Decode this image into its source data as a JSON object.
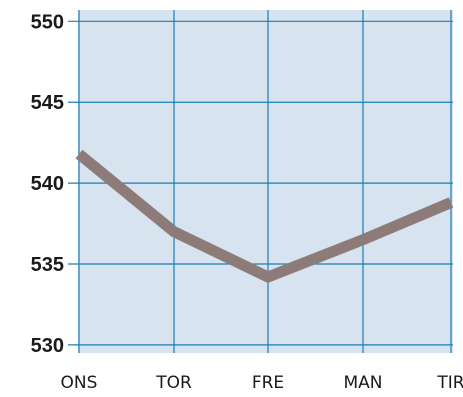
{
  "chart_data": {
    "type": "line",
    "categories": [
      "ONS",
      "TOR",
      "FRE",
      "MAN",
      "TIR"
    ],
    "series": [
      {
        "values": [
          541.8,
          537.0,
          534.2,
          536.5,
          538.8
        ]
      }
    ],
    "ylim": [
      529.5,
      550.7
    ],
    "yticks": [
      550,
      545,
      540,
      535,
      530
    ],
    "grid": true,
    "colors": {
      "background": "#d7e3ee",
      "grid": "#1a7fb8",
      "line": "#8c7b78"
    }
  }
}
